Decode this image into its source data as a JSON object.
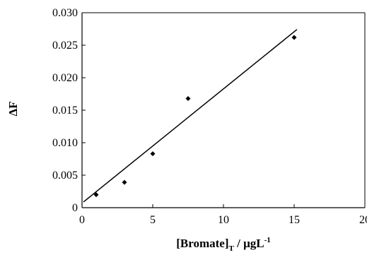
{
  "chart_data": {
    "type": "scatter",
    "title": "",
    "xlabel": {
      "main": "[Bromate]",
      "sub": "T",
      "unit": " / μgL",
      "sup": "-1"
    },
    "ylabel": "ΔF",
    "xlim": [
      0,
      20
    ],
    "ylim": [
      0,
      0.03
    ],
    "x_ticks": [
      "0",
      "5",
      "10",
      "15",
      "20"
    ],
    "y_ticks": [
      "0",
      "0.005",
      "0.010",
      "0.015",
      "0.020",
      "0.025",
      "0.030"
    ],
    "grid": false,
    "legend": "none",
    "series": [
      {
        "marker": "diamond",
        "points": [
          {
            "x": 1,
            "y": 0.002
          },
          {
            "x": 3,
            "y": 0.0039
          },
          {
            "x": 5,
            "y": 0.0083
          },
          {
            "x": 7.5,
            "y": 0.0168
          },
          {
            "x": 15,
            "y": 0.0262
          }
        ]
      }
    ],
    "trendline": {
      "type": "linear",
      "x_range": [
        0.1,
        15.2
      ],
      "slope": 0.001758,
      "intercept": 0.0007
    }
  }
}
